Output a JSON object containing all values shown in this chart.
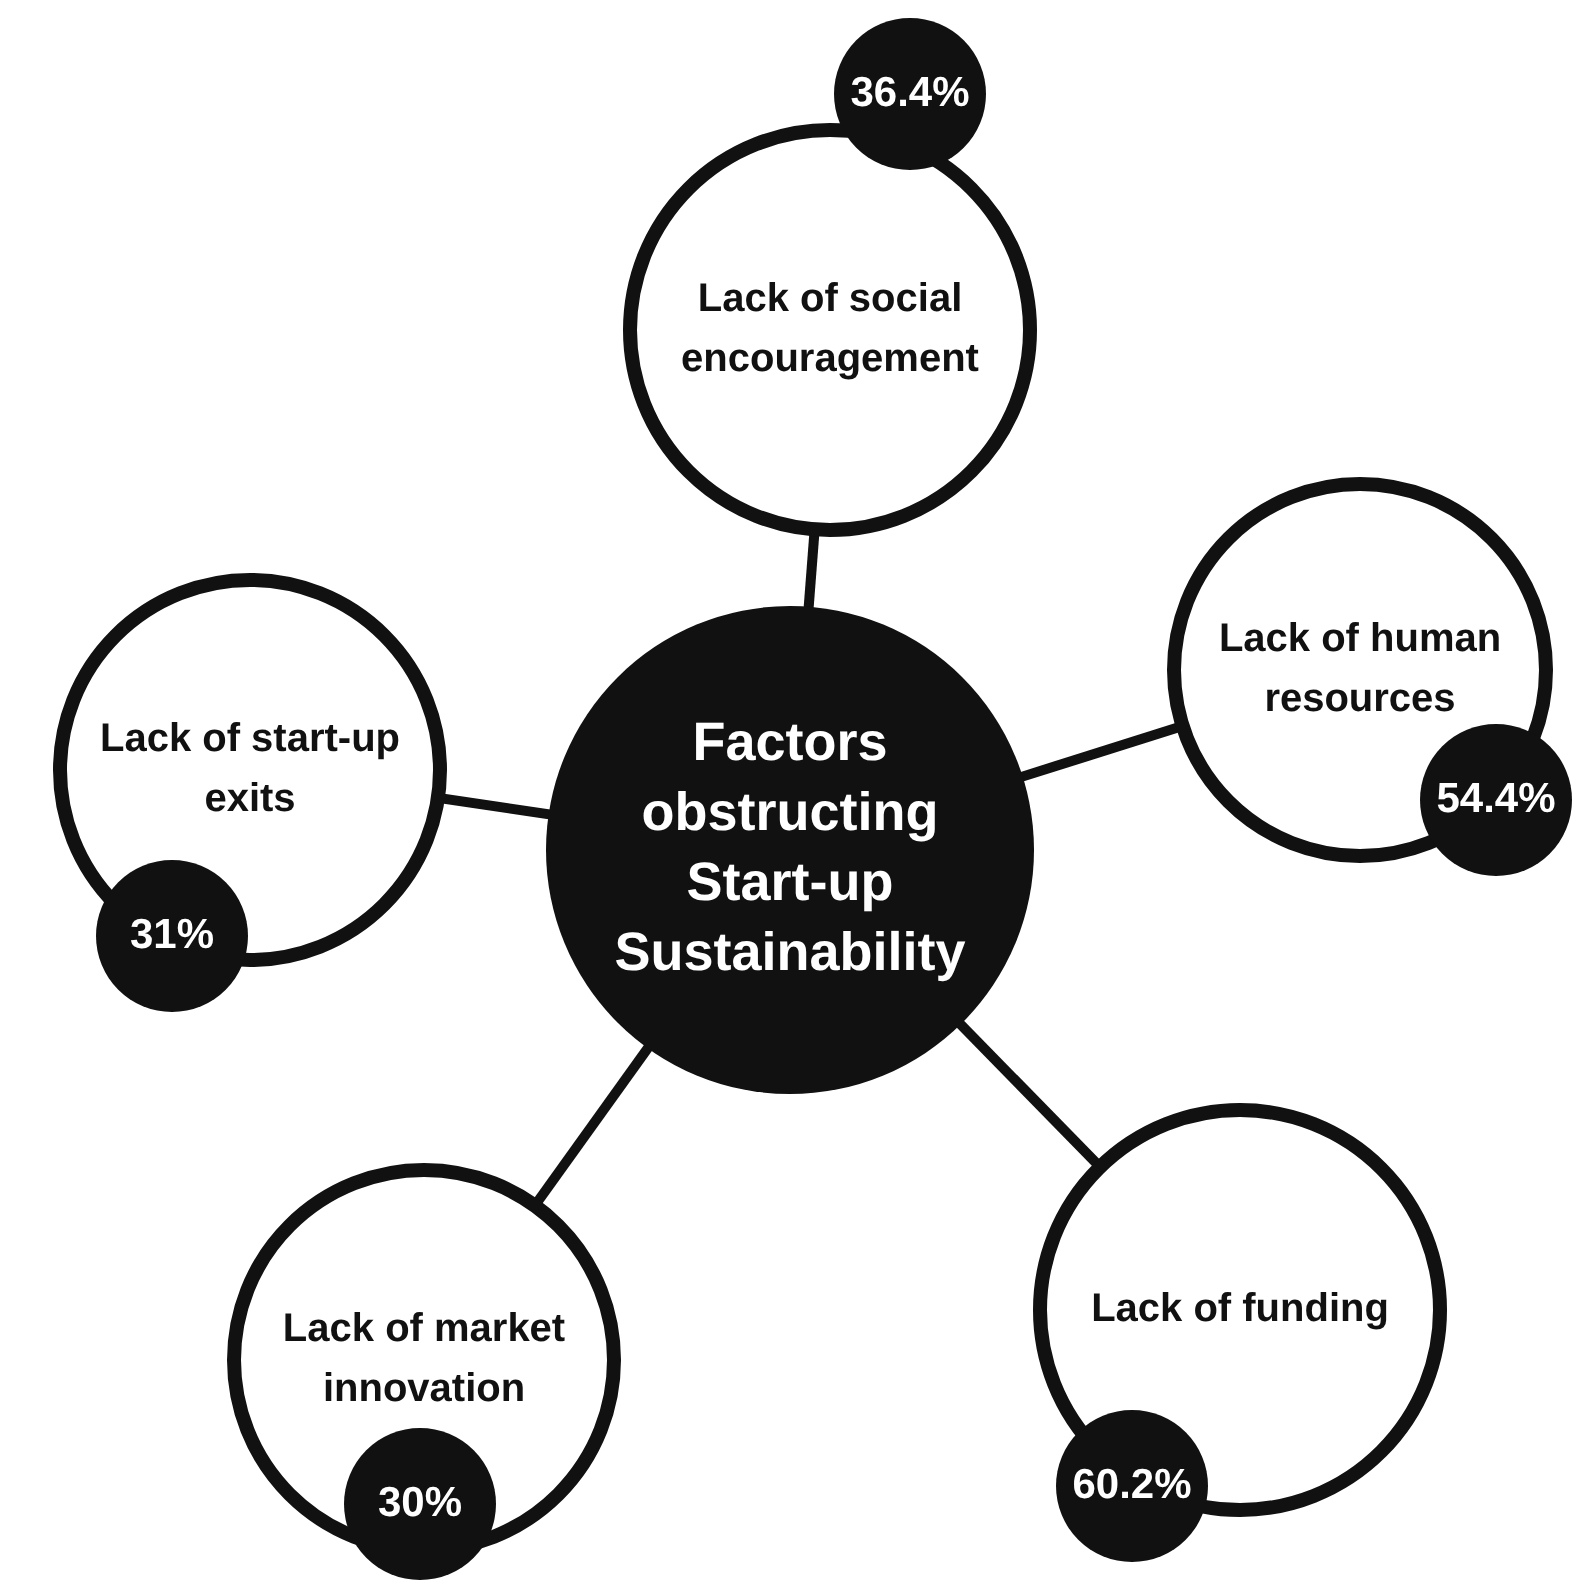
{
  "chart_data": {
    "type": "other",
    "title": "Factors obstructing Start-up Sustainability",
    "categories": [
      "Lack of social encouragement",
      "Lack of human resources",
      "Lack of funding",
      "Lack of market innovation",
      "Lack of start-up exits"
    ],
    "values": [
      36.4,
      54.4,
      60.2,
      30,
      31
    ],
    "value_labels": [
      "36.4%",
      "54.4%",
      "60.2%",
      "30%",
      "31%"
    ]
  }
}
